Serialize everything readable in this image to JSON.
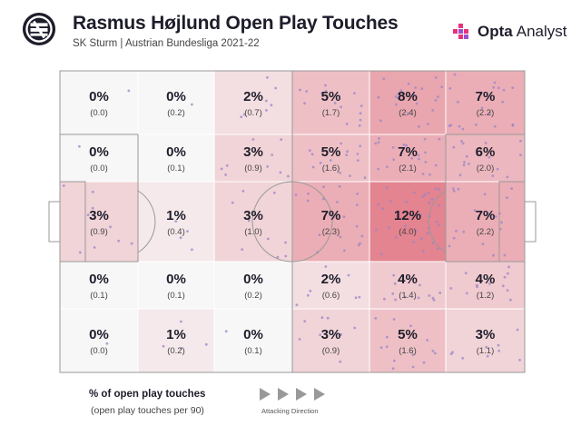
{
  "header": {
    "title": "Rasmus Højlund Open Play Touches",
    "subtitle": "SK Sturm | Austrian Bundesliga 2021-22",
    "brand_name": "Opta",
    "brand_sub": "Analyst",
    "club_logo_icon": "sk-sturm-crest-icon",
    "brand_logo_icon": "opta-mark-icon"
  },
  "legend": {
    "title": "% of open play touches",
    "subtitle": "(open play touches per 90)",
    "direction_label": "Attacking Direction",
    "direction_icon": "arrow-triangle-icon"
  },
  "colors": {
    "heat_max": "#e0707e",
    "pitch_line": "#999999",
    "point": "#9a84c8",
    "cell_base": "#f7f7f7"
  },
  "chart_data": {
    "type": "heatmap",
    "title": "Rasmus Højlund Open Play Touches",
    "columns": 6,
    "rows": 5,
    "direction": "left-to-right",
    "cells": [
      [
        {
          "pct": "0%",
          "per90": "(0.0)",
          "value": 0
        },
        {
          "pct": "0%",
          "per90": "(0.2)",
          "value": 0
        },
        {
          "pct": "2%",
          "per90": "(0.7)",
          "value": 2
        },
        {
          "pct": "5%",
          "per90": "(1.7)",
          "value": 5
        },
        {
          "pct": "8%",
          "per90": "(2.4)",
          "value": 8
        },
        {
          "pct": "7%",
          "per90": "(2.2)",
          "value": 7
        }
      ],
      [
        {
          "pct": "0%",
          "per90": "(0.0)",
          "value": 0
        },
        {
          "pct": "0%",
          "per90": "(0.1)",
          "value": 0
        },
        {
          "pct": "3%",
          "per90": "(0.9)",
          "value": 3
        },
        {
          "pct": "5%",
          "per90": "(1.6)",
          "value": 5
        },
        {
          "pct": "7%",
          "per90": "(2.1)",
          "value": 7
        },
        {
          "pct": "6%",
          "per90": "(2.0)",
          "value": 6
        }
      ],
      [
        {
          "pct": "3%",
          "per90": "(0.9)",
          "value": 3
        },
        {
          "pct": "1%",
          "per90": "(0.4)",
          "value": 1
        },
        {
          "pct": "3%",
          "per90": "(1.0)",
          "value": 3
        },
        {
          "pct": "7%",
          "per90": "(2.3)",
          "value": 7
        },
        {
          "pct": "12%",
          "per90": "(4.0)",
          "value": 12
        },
        {
          "pct": "7%",
          "per90": "(2.2)",
          "value": 7
        }
      ],
      [
        {
          "pct": "0%",
          "per90": "(0.1)",
          "value": 0
        },
        {
          "pct": "0%",
          "per90": "(0.1)",
          "value": 0
        },
        {
          "pct": "0%",
          "per90": "(0.2)",
          "value": 0
        },
        {
          "pct": "2%",
          "per90": "(0.6)",
          "value": 2
        },
        {
          "pct": "4%",
          "per90": "(1.4)",
          "value": 4
        },
        {
          "pct": "4%",
          "per90": "(1.2)",
          "value": 4
        }
      ],
      [
        {
          "pct": "0%",
          "per90": "(0.0)",
          "value": 0
        },
        {
          "pct": "1%",
          "per90": "(0.2)",
          "value": 1
        },
        {
          "pct": "0%",
          "per90": "(0.1)",
          "value": 0
        },
        {
          "pct": "3%",
          "per90": "(0.9)",
          "value": 3
        },
        {
          "pct": "5%",
          "per90": "(1.6)",
          "value": 5
        },
        {
          "pct": "3%",
          "per90": "(1.1)",
          "value": 3
        }
      ]
    ]
  }
}
